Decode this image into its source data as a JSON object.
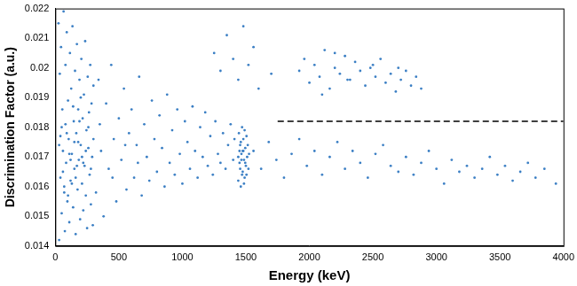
{
  "chart_data": {
    "type": "scatter",
    "x_label": "Energy (keV)",
    "y_label": "Discrimination Factor (a.u.)",
    "xlim": [
      0,
      4000
    ],
    "xticks": [
      0,
      500,
      1000,
      1500,
      2000,
      2500,
      3000,
      3500,
      4000
    ],
    "ylim": [
      0.014,
      0.022
    ],
    "yticks": [
      0.014,
      0.015,
      0.016,
      0.017,
      0.018,
      0.019,
      0.02,
      0.021,
      0.022
    ],
    "grid": false,
    "series": [
      {
        "color": "#3b7fc4",
        "marker": "circle",
        "x": [
          25,
          30,
          35,
          40,
          45,
          50,
          55,
          60,
          65,
          70,
          75,
          80,
          85,
          90,
          95,
          100,
          105,
          110,
          115,
          120,
          125,
          130,
          135,
          140,
          145,
          150,
          155,
          160,
          165,
          170,
          175,
          180,
          185,
          190,
          195,
          200,
          205,
          210,
          215,
          220,
          225,
          230,
          235,
          240,
          245,
          250,
          255,
          260,
          265,
          270,
          275,
          280,
          285,
          290,
          295,
          300,
          40,
          60,
          80,
          100,
          120,
          140,
          160,
          180,
          200,
          220,
          240,
          260,
          280,
          300,
          30,
          50,
          70,
          90,
          110,
          130,
          150,
          170,
          190,
          210,
          320,
          340,
          360,
          380,
          400,
          420,
          440,
          460,
          480,
          500,
          520,
          540,
          560,
          580,
          600,
          620,
          640,
          660,
          680,
          700,
          720,
          740,
          760,
          780,
          800,
          820,
          840,
          860,
          880,
          900,
          920,
          940,
          960,
          980,
          1000,
          1020,
          1040,
          1060,
          1080,
          1100,
          1120,
          1140,
          1160,
          1180,
          1200,
          1220,
          1240,
          1260,
          1280,
          1300,
          1320,
          1340,
          1360,
          1380,
          1400,
          1410,
          350,
          450,
          550,
          650,
          1440,
          1445,
          1450,
          1455,
          1460,
          1465,
          1470,
          1475,
          1480,
          1485,
          1490,
          1495,
          1500,
          1505,
          1510,
          1450,
          1460,
          1470,
          1480,
          1490,
          1455,
          1465,
          1475,
          1485,
          1495,
          1505,
          1515,
          1440,
          1520,
          1525,
          1560,
          1620,
          1680,
          1740,
          1800,
          1860,
          1920,
          1980,
          2040,
          2100,
          2160,
          2220,
          2280,
          2340,
          2400,
          2460,
          2520,
          2580,
          2640,
          2700,
          2760,
          2820,
          2880,
          2940,
          3000,
          3060,
          3120,
          3180,
          3240,
          3300,
          3360,
          3420,
          3480,
          3540,
          3600,
          3660,
          3720,
          3780,
          3850,
          3940,
          1920,
          1960,
          2000,
          2040,
          2080,
          2120,
          2160,
          2200,
          2240,
          2280,
          2320,
          2360,
          2400,
          2440,
          2480,
          2520,
          2560,
          2600,
          2640,
          2680,
          2720,
          2760,
          2800,
          2840,
          2880,
          2100,
          2200,
          2300,
          2500,
          2700,
          1250,
          1300,
          1350,
          1400,
          1440,
          1480,
          1520,
          1560,
          1600,
          1700
        ],
        "values": [
          0.0215,
          0.0142,
          0.0198,
          0.0163,
          0.0207,
          0.0151,
          0.0186,
          0.0172,
          0.0219,
          0.0158,
          0.0145,
          0.0201,
          0.0168,
          0.0212,
          0.0155,
          0.0189,
          0.0176,
          0.0148,
          0.0205,
          0.0162,
          0.0193,
          0.0171,
          0.0214,
          0.0153,
          0.0182,
          0.0166,
          0.0199,
          0.0144,
          0.0178,
          0.0208,
          0.0159,
          0.0186,
          0.0169,
          0.0196,
          0.0149,
          0.0174,
          0.0203,
          0.0161,
          0.0183,
          0.0152,
          0.0191,
          0.0167,
          0.0209,
          0.0157,
          0.0179,
          0.0146,
          0.0197,
          0.0173,
          0.0185,
          0.0164,
          0.0201,
          0.0154,
          0.0188,
          0.017,
          0.0147,
          0.0194,
          0.0177,
          0.0165,
          0.0181,
          0.0157,
          0.0169,
          0.0187,
          0.0163,
          0.0175,
          0.019,
          0.0168,
          0.0172,
          0.018,
          0.0166,
          0.0176,
          0.0174,
          0.018,
          0.016,
          0.0178,
          0.0171,
          0.0161,
          0.0175,
          0.0167,
          0.0182,
          0.017,
          0.0158,
          0.0196,
          0.0172,
          0.015,
          0.0188,
          0.0166,
          0.0201,
          0.0176,
          0.0155,
          0.0183,
          0.0169,
          0.0193,
          0.0159,
          0.0178,
          0.0186,
          0.0163,
          0.0174,
          0.0197,
          0.0157,
          0.0181,
          0.017,
          0.0162,
          0.0189,
          0.0176,
          0.0165,
          0.0184,
          0.0173,
          0.016,
          0.0191,
          0.0168,
          0.0179,
          0.0164,
          0.0186,
          0.0171,
          0.0161,
          0.0182,
          0.0175,
          0.0166,
          0.0187,
          0.0172,
          0.0163,
          0.018,
          0.017,
          0.0185,
          0.0167,
          0.0177,
          0.0164,
          0.0182,
          0.0171,
          0.0168,
          0.0178,
          0.0166,
          0.0174,
          0.0181,
          0.0169,
          0.0176,
          0.0181,
          0.0163,
          0.0174,
          0.0168,
          0.0162,
          0.0178,
          0.0168,
          0.0174,
          0.016,
          0.0171,
          0.018,
          0.0165,
          0.0176,
          0.0169,
          0.0163,
          0.0173,
          0.0167,
          0.0177,
          0.017,
          0.0172,
          0.0175,
          0.0164,
          0.0172,
          0.0179,
          0.0166,
          0.0169,
          0.0172,
          0.0161,
          0.0168,
          0.0164,
          0.0174,
          0.017,
          0.0166,
          0.0171,
          0.0172,
          0.0166,
          0.0175,
          0.0169,
          0.0163,
          0.0171,
          0.0176,
          0.0167,
          0.0172,
          0.0164,
          0.017,
          0.0175,
          0.0166,
          0.0172,
          0.0168,
          0.0163,
          0.0171,
          0.0174,
          0.0167,
          0.0165,
          0.017,
          0.0164,
          0.0168,
          0.0172,
          0.0166,
          0.0161,
          0.0169,
          0.0165,
          0.0167,
          0.0163,
          0.0166,
          0.017,
          0.0164,
          0.0167,
          0.0162,
          0.0165,
          0.0168,
          0.0163,
          0.0166,
          0.0161,
          0.0199,
          0.0203,
          0.0195,
          0.0201,
          0.0197,
          0.0206,
          0.0193,
          0.02,
          0.0198,
          0.0204,
          0.0196,
          0.0202,
          0.0199,
          0.0194,
          0.02,
          0.0197,
          0.0203,
          0.0195,
          0.0198,
          0.0192,
          0.0196,
          0.0199,
          0.0194,
          0.0197,
          0.0193,
          0.0191,
          0.0205,
          0.0196,
          0.0201,
          0.02,
          0.0205,
          0.0199,
          0.0211,
          0.0203,
          0.0196,
          0.0214,
          0.0201,
          0.0207,
          0.0193,
          0.0198
        ]
      },
      {
        "type": "line",
        "color": "#000000",
        "line_style": "dashed",
        "x": [
          1750,
          4000
        ],
        "values": [
          0.0182,
          0.0182
        ]
      }
    ]
  }
}
